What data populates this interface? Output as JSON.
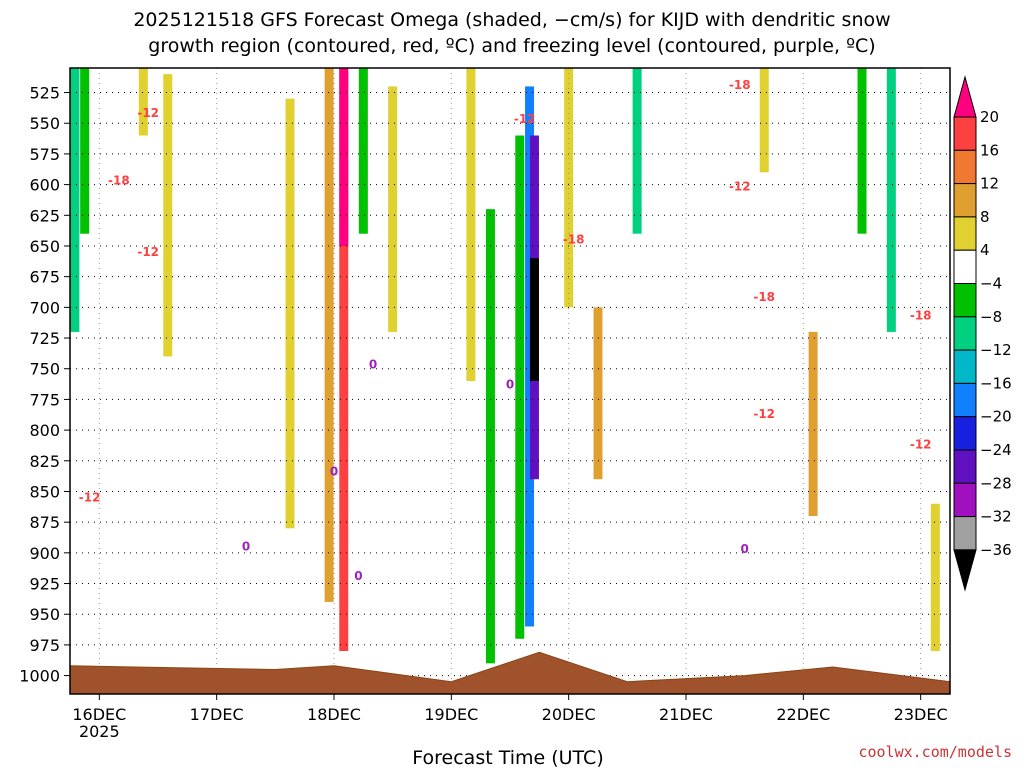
{
  "chart_data": {
    "type": "heatmap",
    "title_lines": [
      "2025121518 GFS Forecast Omega (shaded, −cm/s) for KIJD with dendritic snow",
      "growth region (contoured, red, ºC) and freezing level (contoured, purple, ºC)"
    ],
    "xlabel": "Forecast Time (UTC)",
    "ylabel": "",
    "x_tick_labels": [
      "16DEC",
      "17DEC",
      "18DEC",
      "19DEC",
      "20DEC",
      "21DEC",
      "22DEC",
      "23DEC"
    ],
    "x_year_label": "2025",
    "x_range": [
      "2025-12-15T18Z",
      "2025-12-23T06Z"
    ],
    "y_tick_labels": [
      "525",
      "550",
      "575",
      "600",
      "625",
      "650",
      "675",
      "700",
      "725",
      "750",
      "775",
      "800",
      "825",
      "850",
      "875",
      "900",
      "925",
      "950",
      "975",
      "1000"
    ],
    "y_range_hpa": [
      505,
      1015
    ],
    "grid": true,
    "colorbar": {
      "placement": "right",
      "labels": [
        "20",
        "16",
        "12",
        "8",
        "4",
        "−4",
        "−8",
        "−12",
        "−16",
        "−20",
        "−24",
        "−28",
        "−32",
        "−36"
      ],
      "colors": [
        "#ff0080",
        "#ff4040",
        "#f07830",
        "#e0a030",
        "#e0d030",
        "#ffffff",
        "#00c000",
        "#00d080",
        "#00b8c8",
        "#1080ff",
        "#1820e0",
        "#6010c0",
        "#a010c0",
        "#a0a0a0",
        "#000000"
      ]
    },
    "omega_bands": [
      {
        "time": "2025-12-15T19Z",
        "p_top": 505,
        "p_bottom": 720,
        "value": -10,
        "color": "#00d080"
      },
      {
        "time": "2025-12-15T21Z",
        "p_top": 505,
        "p_bottom": 640,
        "value": -6,
        "color": "#00c000"
      },
      {
        "time": "2025-12-16T09Z",
        "p_top": 505,
        "p_bottom": 560,
        "value": 5,
        "color": "#e0d030"
      },
      {
        "time": "2025-12-16T14Z",
        "p_top": 510,
        "p_bottom": 740,
        "value": 5,
        "color": "#e0d030"
      },
      {
        "time": "2025-12-17T15Z",
        "p_top": 530,
        "p_bottom": 880,
        "value": 5,
        "color": "#e0d030"
      },
      {
        "time": "2025-12-17T23Z",
        "p_top": 505,
        "p_bottom": 940,
        "value": 8,
        "color": "#e0a030"
      },
      {
        "time": "2025-12-18T02Z",
        "p_top": 505,
        "p_bottom": 980,
        "value": 14,
        "color": "#ff4040"
      },
      {
        "time": "2025-12-18T02Z",
        "p_top": 505,
        "p_bottom": 650,
        "value": 20,
        "color": "#ff0080"
      },
      {
        "time": "2025-12-18T06Z",
        "p_top": 505,
        "p_bottom": 640,
        "value": -6,
        "color": "#00c000"
      },
      {
        "time": "2025-12-18T12Z",
        "p_top": 520,
        "p_bottom": 720,
        "value": 5,
        "color": "#e0d030"
      },
      {
        "time": "2025-12-19T04Z",
        "p_top": 505,
        "p_bottom": 760,
        "value": 5,
        "color": "#e0d030"
      },
      {
        "time": "2025-12-19T08Z",
        "p_top": 620,
        "p_bottom": 990,
        "value": -6,
        "color": "#00c000"
      },
      {
        "time": "2025-12-19T14Z",
        "p_top": 560,
        "p_bottom": 970,
        "value": -8,
        "color": "#00c000"
      },
      {
        "time": "2025-12-19T16Z",
        "p_top": 520,
        "p_bottom": 960,
        "value": -16,
        "color": "#1080ff"
      },
      {
        "time": "2025-12-19T17Z",
        "p_top": 560,
        "p_bottom": 840,
        "value": -28,
        "color": "#6010c0"
      },
      {
        "time": "2025-12-19T17Z",
        "p_top": 660,
        "p_bottom": 760,
        "value": -40,
        "color": "#000000"
      },
      {
        "time": "2025-12-20T00Z",
        "p_top": 505,
        "p_bottom": 700,
        "value": 5,
        "color": "#e0d030"
      },
      {
        "time": "2025-12-20T06Z",
        "p_top": 700,
        "p_bottom": 840,
        "value": 10,
        "color": "#e0a030"
      },
      {
        "time": "2025-12-20T14Z",
        "p_top": 505,
        "p_bottom": 640,
        "value": -10,
        "color": "#00d080"
      },
      {
        "time": "2025-12-21T16Z",
        "p_top": 505,
        "p_bottom": 590,
        "value": 5,
        "color": "#e0d030"
      },
      {
        "time": "2025-12-22T02Z",
        "p_top": 720,
        "p_bottom": 870,
        "value": 10,
        "color": "#e0a030"
      },
      {
        "time": "2025-12-22T12Z",
        "p_top": 505,
        "p_bottom": 640,
        "value": -8,
        "color": "#00c000"
      },
      {
        "time": "2025-12-22T18Z",
        "p_top": 505,
        "p_bottom": 720,
        "value": -12,
        "color": "#00d080"
      },
      {
        "time": "2025-12-23T03Z",
        "p_top": 860,
        "p_bottom": 980,
        "value": 5,
        "color": "#e0d030"
      }
    ],
    "surface_pressure": [
      {
        "time": "2025-12-15T18Z",
        "p": 992
      },
      {
        "time": "2025-12-17T12Z",
        "p": 995
      },
      {
        "time": "2025-12-18T00Z",
        "p": 992
      },
      {
        "time": "2025-12-19T00Z",
        "p": 1005
      },
      {
        "time": "2025-12-19T18Z",
        "p": 981
      },
      {
        "time": "2025-12-20T12Z",
        "p": 1005
      },
      {
        "time": "2025-12-21T12Z",
        "p": 1000
      },
      {
        "time": "2025-12-22T06Z",
        "p": 993
      },
      {
        "time": "2025-12-23T06Z",
        "p": 1005
      }
    ],
    "contour_labels": [
      {
        "text": "-12",
        "color": "#ff4040",
        "time": "2025-12-16T10Z",
        "p": 545
      },
      {
        "text": "-18",
        "color": "#ff4040",
        "time": "2025-12-16T04Z",
        "p": 600
      },
      {
        "text": "-12",
        "color": "#ff4040",
        "time": "2025-12-16T10Z",
        "p": 658
      },
      {
        "text": "-12",
        "color": "#ff4040",
        "time": "2025-12-15T22Z",
        "p": 858
      },
      {
        "text": "-12",
        "color": "#ff4040",
        "time": "2025-12-19T15Z",
        "p": 550
      },
      {
        "text": "-18",
        "color": "#ff4040",
        "time": "2025-12-20T01Z",
        "p": 648
      },
      {
        "text": "-18",
        "color": "#ff4040",
        "time": "2025-12-21T11Z",
        "p": 522
      },
      {
        "text": "-12",
        "color": "#ff4040",
        "time": "2025-12-21T11Z",
        "p": 605
      },
      {
        "text": "-18",
        "color": "#ff4040",
        "time": "2025-12-21T16Z",
        "p": 695
      },
      {
        "text": "-12",
        "color": "#ff4040",
        "time": "2025-12-21T16Z",
        "p": 790
      },
      {
        "text": "-18",
        "color": "#ff4040",
        "time": "2025-12-23T00Z",
        "p": 710
      },
      {
        "text": "-12",
        "color": "#ff4040",
        "time": "2025-12-23T00Z",
        "p": 815
      },
      {
        "text": "0",
        "color": "#a020c0",
        "time": "2025-12-18T08Z",
        "p": 750
      },
      {
        "text": "0",
        "color": "#a020c0",
        "time": "2025-12-19T12Z",
        "p": 766
      },
      {
        "text": "0",
        "color": "#a020c0",
        "time": "2025-12-18T00Z",
        "p": 837
      },
      {
        "text": "0",
        "color": "#a020c0",
        "time": "2025-12-17T06Z",
        "p": 898
      },
      {
        "text": "0",
        "color": "#a020c0",
        "time": "2025-12-18T05Z",
        "p": 922
      },
      {
        "text": "0",
        "color": "#a020c0",
        "time": "2025-12-21T12Z",
        "p": 900
      }
    ]
  },
  "credit": "coolwx.com/models"
}
